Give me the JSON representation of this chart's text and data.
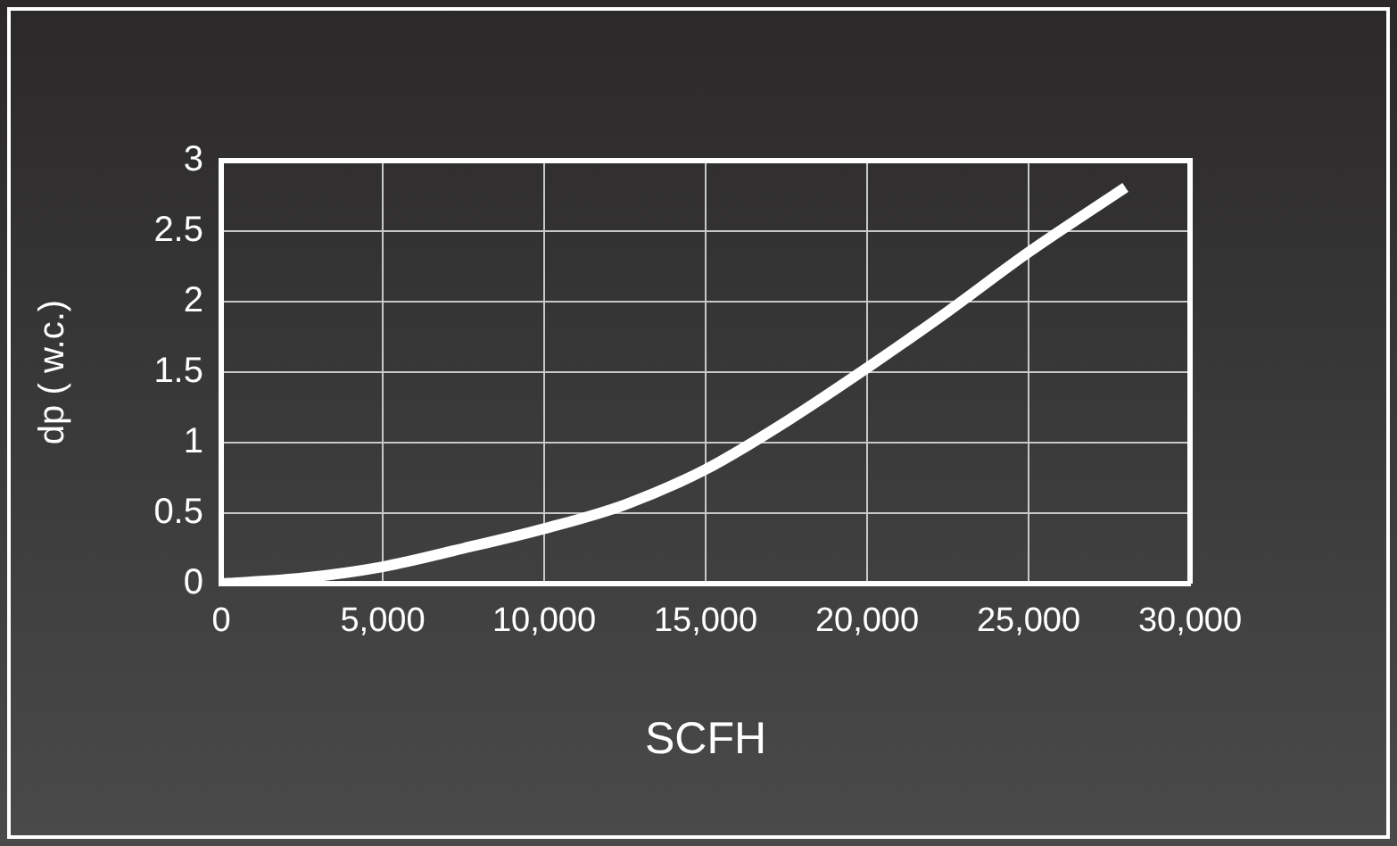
{
  "chart_data": {
    "type": "line",
    "xlabel": "SCFH",
    "ylabel": "dp ( w.c.)",
    "x": [
      0,
      2500,
      5000,
      7500,
      10000,
      12500,
      15000,
      17500,
      20000,
      22500,
      25000,
      28000
    ],
    "series": [
      {
        "color": "#ffffff",
        "values": [
          0,
          0.04,
          0.12,
          0.25,
          0.39,
          0.56,
          0.81,
          1.15,
          1.53,
          1.93,
          2.35,
          2.81
        ]
      }
    ],
    "xlim": [
      0,
      30000
    ],
    "xticks": [
      {
        "value": 0,
        "label": "0"
      },
      {
        "value": 5000,
        "label": "5,000"
      },
      {
        "value": 10000,
        "label": "10,000"
      },
      {
        "value": 15000,
        "label": "15,000"
      },
      {
        "value": 20000,
        "label": "20,000"
      },
      {
        "value": 25000,
        "label": "25,000"
      },
      {
        "value": 30000,
        "label": "30,000"
      }
    ],
    "ylim": [
      0,
      3
    ],
    "yticks": [
      0,
      0.5,
      1,
      1.5,
      2,
      2.5,
      3
    ],
    "grid": true,
    "legend": false,
    "marker": "none",
    "line_style": "solid"
  }
}
